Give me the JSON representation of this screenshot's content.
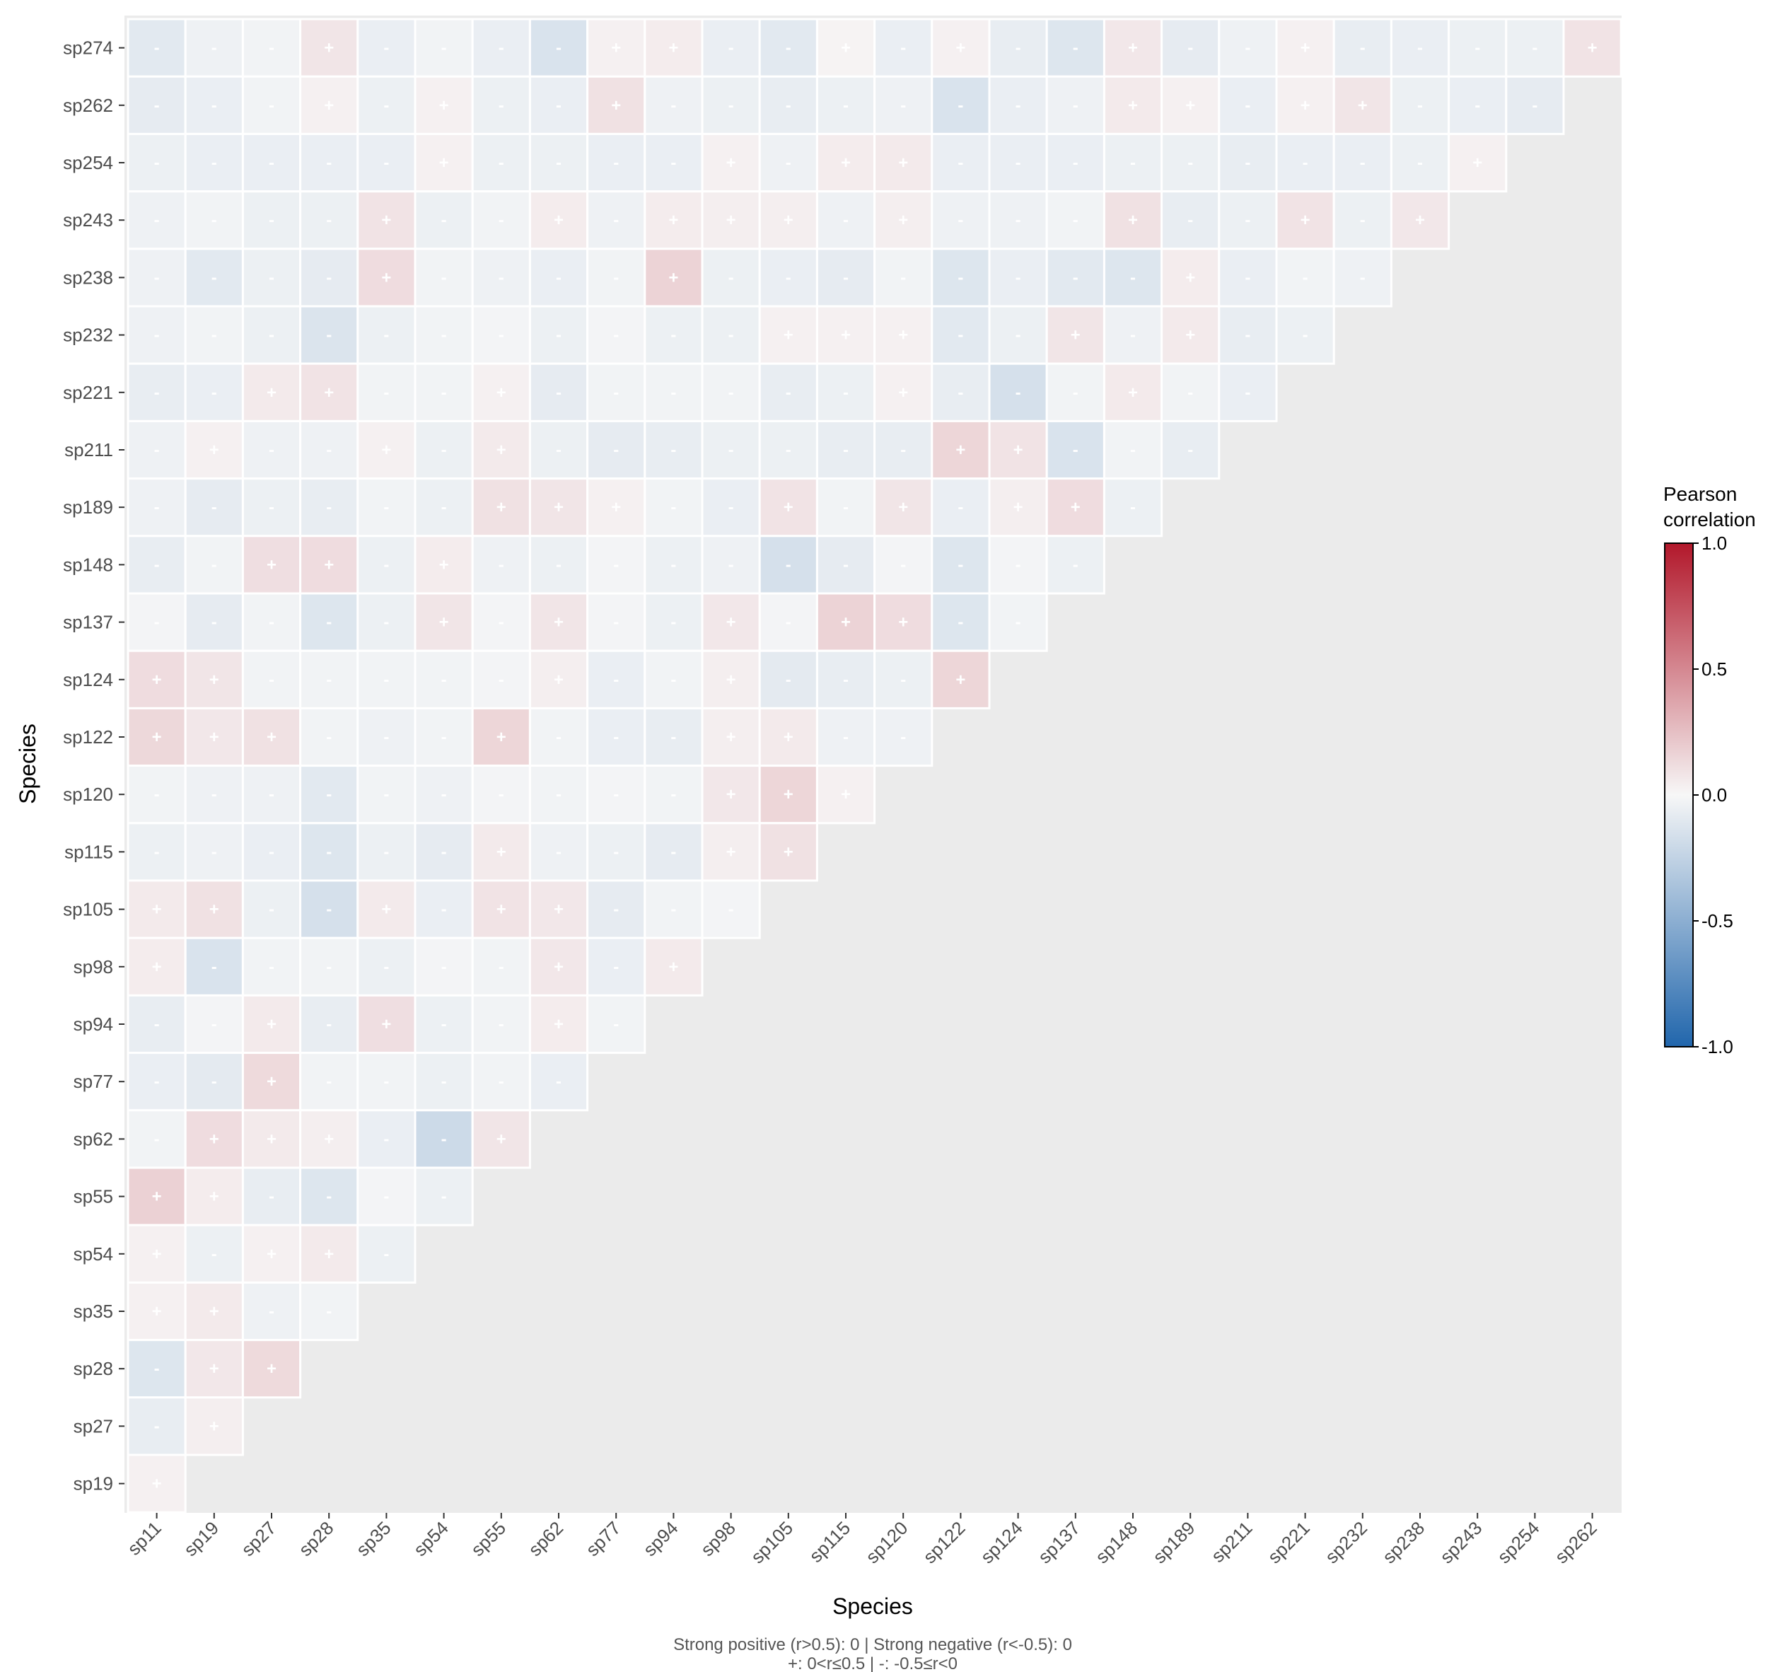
{
  "chart_data": {
    "type": "heatmap",
    "title": "",
    "xlabel": "Species",
    "ylabel": "Species",
    "x_categories": [
      "sp11",
      "sp19",
      "sp27",
      "sp28",
      "sp35",
      "sp54",
      "sp55",
      "sp62",
      "sp77",
      "sp94",
      "sp98",
      "sp105",
      "sp115",
      "sp120",
      "sp122",
      "sp124",
      "sp137",
      "sp148",
      "sp189",
      "sp211",
      "sp221",
      "sp232",
      "sp238",
      "sp243",
      "sp254",
      "sp262"
    ],
    "y_categories": [
      "sp274",
      "sp262",
      "sp254",
      "sp243",
      "sp238",
      "sp232",
      "sp221",
      "sp211",
      "sp189",
      "sp148",
      "sp137",
      "sp124",
      "sp122",
      "sp120",
      "sp115",
      "sp105",
      "sp98",
      "sp94",
      "sp77",
      "sp62",
      "sp55",
      "sp54",
      "sp35",
      "sp28",
      "sp27",
      "sp19"
    ],
    "values": [
      [
        -0.1,
        -0.04,
        -0.03,
        0.08,
        -0.06,
        -0.03,
        -0.06,
        -0.14,
        0.03,
        0.05,
        -0.06,
        -0.1,
        0.02,
        -0.06,
        0.03,
        -0.07,
        -0.12,
        0.07,
        -0.08,
        -0.04,
        0.03,
        -0.07,
        -0.06,
        -0.05,
        -0.05,
        0.09
      ],
      [
        -0.08,
        -0.06,
        -0.03,
        0.03,
        -0.05,
        0.03,
        -0.05,
        -0.06,
        0.1,
        -0.04,
        -0.05,
        -0.07,
        -0.05,
        -0.04,
        -0.14,
        -0.06,
        -0.04,
        0.06,
        0.03,
        -0.06,
        0.03,
        0.08,
        -0.05,
        -0.06,
        -0.08
      ],
      [
        -0.05,
        -0.06,
        -0.06,
        -0.06,
        -0.06,
        0.03,
        -0.05,
        -0.05,
        -0.06,
        -0.06,
        0.03,
        -0.04,
        0.05,
        0.06,
        -0.06,
        -0.06,
        -0.06,
        -0.05,
        -0.05,
        -0.07,
        -0.06,
        -0.06,
        -0.05,
        0.03
      ],
      [
        -0.04,
        -0.03,
        -0.05,
        -0.05,
        0.09,
        -0.05,
        -0.03,
        0.05,
        -0.04,
        0.05,
        0.04,
        0.04,
        -0.04,
        0.04,
        -0.04,
        -0.04,
        -0.03,
        0.1,
        -0.07,
        -0.05,
        0.09,
        -0.05,
        0.07
      ],
      [
        -0.04,
        -0.1,
        -0.05,
        -0.08,
        0.12,
        -0.03,
        -0.04,
        -0.06,
        -0.03,
        0.16,
        -0.05,
        -0.06,
        -0.08,
        -0.03,
        -0.12,
        -0.06,
        -0.1,
        -0.12,
        0.05,
        -0.06,
        -0.03,
        -0.04
      ],
      [
        -0.04,
        -0.03,
        -0.05,
        -0.13,
        -0.05,
        -0.03,
        -0.02,
        -0.05,
        -0.02,
        -0.05,
        -0.05,
        0.03,
        0.03,
        0.03,
        -0.1,
        -0.05,
        0.08,
        -0.04,
        0.06,
        -0.07,
        -0.05
      ],
      [
        -0.07,
        -0.06,
        0.06,
        0.09,
        -0.03,
        -0.03,
        0.03,
        -0.08,
        -0.03,
        -0.03,
        -0.03,
        -0.07,
        -0.05,
        0.03,
        -0.07,
        -0.16,
        -0.03,
        0.06,
        -0.03,
        -0.06
      ],
      [
        -0.04,
        0.03,
        -0.04,
        -0.04,
        0.03,
        -0.05,
        0.06,
        -0.05,
        -0.08,
        -0.07,
        -0.05,
        -0.05,
        -0.07,
        -0.07,
        0.15,
        0.09,
        -0.14,
        -0.03,
        -0.07
      ],
      [
        -0.04,
        -0.08,
        -0.05,
        -0.07,
        -0.03,
        -0.05,
        0.1,
        0.08,
        0.03,
        -0.03,
        -0.06,
        0.09,
        -0.03,
        0.08,
        -0.06,
        0.04,
        0.12,
        -0.05
      ],
      [
        -0.07,
        -0.03,
        0.11,
        0.12,
        -0.05,
        0.05,
        -0.04,
        -0.05,
        -0.02,
        -0.05,
        -0.04,
        -0.16,
        -0.08,
        -0.02,
        -0.12,
        -0.02,
        -0.05
      ],
      [
        -0.02,
        -0.08,
        -0.03,
        -0.12,
        -0.05,
        0.08,
        -0.02,
        0.08,
        -0.02,
        -0.05,
        0.07,
        -0.02,
        0.16,
        0.12,
        -0.12,
        -0.03
      ],
      [
        0.12,
        0.08,
        -0.03,
        -0.03,
        -0.03,
        -0.03,
        -0.02,
        0.04,
        -0.06,
        -0.03,
        0.04,
        -0.09,
        -0.07,
        -0.05,
        0.15
      ],
      [
        0.14,
        0.07,
        0.1,
        -0.03,
        -0.04,
        -0.03,
        0.15,
        -0.03,
        -0.06,
        -0.07,
        0.04,
        0.06,
        -0.04,
        -0.04
      ],
      [
        -0.03,
        -0.04,
        -0.04,
        -0.1,
        -0.03,
        -0.04,
        -0.02,
        -0.03,
        -0.02,
        -0.03,
        0.07,
        0.15,
        0.03
      ],
      [
        -0.05,
        -0.04,
        -0.06,
        -0.12,
        -0.05,
        -0.08,
        0.06,
        -0.04,
        -0.05,
        -0.08,
        0.04,
        0.1
      ],
      [
        0.06,
        0.1,
        -0.05,
        -0.16,
        0.06,
        -0.06,
        0.09,
        0.07,
        -0.08,
        -0.03,
        -0.02
      ],
      [
        0.05,
        -0.14,
        -0.03,
        -0.03,
        -0.05,
        -0.02,
        -0.03,
        0.07,
        -0.06,
        0.06
      ],
      [
        -0.07,
        -0.02,
        0.06,
        -0.07,
        0.11,
        -0.05,
        -0.03,
        0.05,
        -0.03
      ],
      [
        -0.06,
        -0.09,
        0.13,
        -0.03,
        -0.03,
        -0.05,
        -0.03,
        -0.06
      ],
      [
        -0.03,
        0.12,
        0.06,
        0.04,
        -0.06,
        -0.2,
        0.08
      ],
      [
        0.17,
        0.05,
        -0.07,
        -0.12,
        -0.02,
        -0.05
      ],
      [
        0.03,
        -0.05,
        0.03,
        0.06,
        -0.05
      ],
      [
        0.03,
        0.06,
        -0.04,
        -0.03
      ],
      [
        -0.12,
        0.07,
        0.13
      ],
      [
        -0.07,
        0.04
      ],
      [
        0.03
      ]
    ],
    "cell_labels": {
      "pos": "+",
      "neg": "-"
    },
    "legend": {
      "title_lines": [
        "Pearson",
        "correlation"
      ],
      "ticks": [
        "1.0",
        "0.5",
        "0.0",
        "-0.5",
        "-1.0"
      ],
      "tick_values": [
        1.0,
        0.5,
        0.0,
        -0.5,
        -1.0
      ],
      "range": [
        -1.0,
        1.0
      ],
      "placement": "right"
    },
    "colors": {
      "low": "#2166ac",
      "mid": "#f7f7f7",
      "high": "#b2182b",
      "panel": "#ebebeb",
      "grid": "#ffffff"
    },
    "caption_lines": [
      "Strong positive (r>0.5): 0 | Strong negative (r<-0.5): 0",
      "+: 0<r≤0.5 | -: -0.5≤r<0"
    ]
  }
}
